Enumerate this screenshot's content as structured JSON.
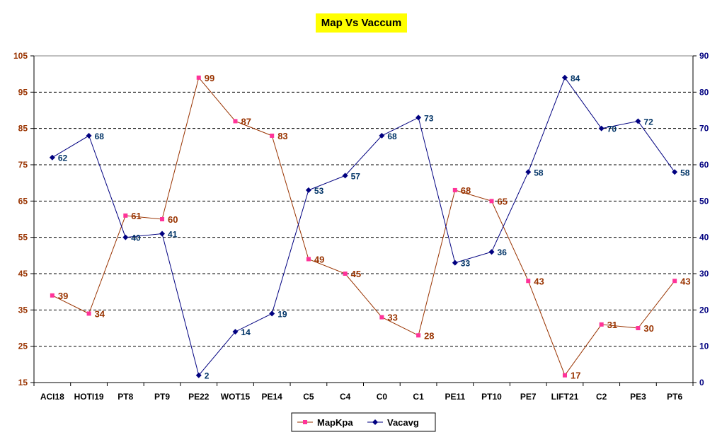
{
  "chart_data": {
    "type": "line",
    "title": "Map Vs Vaccum",
    "categories": [
      "ACI18",
      "HOTI19",
      "PT8",
      "PT9",
      "PE22",
      "WOT15",
      "PE14",
      "C5",
      "C4",
      "C0",
      "C1",
      "PE11",
      "PT10",
      "PE7",
      "LIFT21",
      "C2",
      "PE3",
      "PT6"
    ],
    "left_axis": {
      "min": 15,
      "max": 105,
      "ticks": [
        15,
        25,
        35,
        45,
        55,
        65,
        75,
        85,
        95,
        105
      ]
    },
    "right_axis": {
      "min": 0,
      "max": 90,
      "ticks": [
        0,
        10,
        20,
        30,
        40,
        50,
        60,
        70,
        80,
        90
      ]
    },
    "grid": "horizontal-dashed",
    "legend_position": "bottom",
    "series": [
      {
        "name": "MapKpa",
        "axis": "left",
        "color": "#993300",
        "marker_color": "#ff3399",
        "marker": "square",
        "values": [
          39,
          34,
          61,
          60,
          99,
          87,
          83,
          49,
          45,
          33,
          28,
          68,
          65,
          43,
          17,
          31,
          30,
          43
        ]
      },
      {
        "name": "Vacavg",
        "axis": "right",
        "color": "#000080",
        "marker_color": "#000080",
        "marker": "diamond",
        "values": [
          62,
          68,
          40,
          41,
          2,
          14,
          19,
          53,
          57,
          68,
          73,
          33,
          36,
          58,
          84,
          70,
          72,
          58
        ]
      }
    ]
  }
}
